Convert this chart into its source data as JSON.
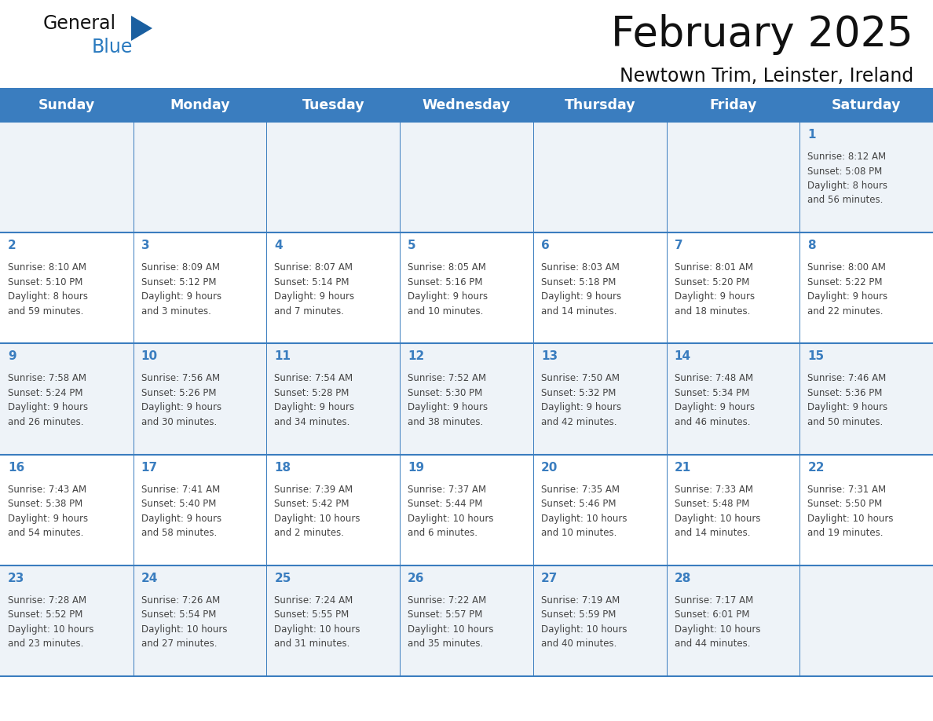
{
  "title": "February 2025",
  "subtitle": "Newtown Trim, Leinster, Ireland",
  "days_of_week": [
    "Sunday",
    "Monday",
    "Tuesday",
    "Wednesday",
    "Thursday",
    "Friday",
    "Saturday"
  ],
  "header_bg_color": "#3a7dbf",
  "header_text_color": "#ffffff",
  "grid_line_color": "#3a7dbf",
  "day_number_color": "#3a7dbf",
  "cell_text_color": "#444444",
  "title_color": "#111111",
  "subtitle_color": "#111111",
  "logo_black_color": "#111111",
  "logo_blue_color": "#2a7abf",
  "logo_triangle_color": "#1a5fa0",
  "row_bg_colors": [
    "#eef3f8",
    "#ffffff",
    "#eef3f8",
    "#ffffff",
    "#eef3f8"
  ],
  "calendar_data": [
    [
      null,
      null,
      null,
      null,
      null,
      null,
      {
        "day": 1,
        "sunrise": "8:12 AM",
        "sunset": "5:08 PM",
        "daylight": "8 hours and 56 minutes."
      }
    ],
    [
      {
        "day": 2,
        "sunrise": "8:10 AM",
        "sunset": "5:10 PM",
        "daylight": "8 hours and 59 minutes."
      },
      {
        "day": 3,
        "sunrise": "8:09 AM",
        "sunset": "5:12 PM",
        "daylight": "9 hours and 3 minutes."
      },
      {
        "day": 4,
        "sunrise": "8:07 AM",
        "sunset": "5:14 PM",
        "daylight": "9 hours and 7 minutes."
      },
      {
        "day": 5,
        "sunrise": "8:05 AM",
        "sunset": "5:16 PM",
        "daylight": "9 hours and 10 minutes."
      },
      {
        "day": 6,
        "sunrise": "8:03 AM",
        "sunset": "5:18 PM",
        "daylight": "9 hours and 14 minutes."
      },
      {
        "day": 7,
        "sunrise": "8:01 AM",
        "sunset": "5:20 PM",
        "daylight": "9 hours and 18 minutes."
      },
      {
        "day": 8,
        "sunrise": "8:00 AM",
        "sunset": "5:22 PM",
        "daylight": "9 hours and 22 minutes."
      }
    ],
    [
      {
        "day": 9,
        "sunrise": "7:58 AM",
        "sunset": "5:24 PM",
        "daylight": "9 hours and 26 minutes."
      },
      {
        "day": 10,
        "sunrise": "7:56 AM",
        "sunset": "5:26 PM",
        "daylight": "9 hours and 30 minutes."
      },
      {
        "day": 11,
        "sunrise": "7:54 AM",
        "sunset": "5:28 PM",
        "daylight": "9 hours and 34 minutes."
      },
      {
        "day": 12,
        "sunrise": "7:52 AM",
        "sunset": "5:30 PM",
        "daylight": "9 hours and 38 minutes."
      },
      {
        "day": 13,
        "sunrise": "7:50 AM",
        "sunset": "5:32 PM",
        "daylight": "9 hours and 42 minutes."
      },
      {
        "day": 14,
        "sunrise": "7:48 AM",
        "sunset": "5:34 PM",
        "daylight": "9 hours and 46 minutes."
      },
      {
        "day": 15,
        "sunrise": "7:46 AM",
        "sunset": "5:36 PM",
        "daylight": "9 hours and 50 minutes."
      }
    ],
    [
      {
        "day": 16,
        "sunrise": "7:43 AM",
        "sunset": "5:38 PM",
        "daylight": "9 hours and 54 minutes."
      },
      {
        "day": 17,
        "sunrise": "7:41 AM",
        "sunset": "5:40 PM",
        "daylight": "9 hours and 58 minutes."
      },
      {
        "day": 18,
        "sunrise": "7:39 AM",
        "sunset": "5:42 PM",
        "daylight": "10 hours and 2 minutes."
      },
      {
        "day": 19,
        "sunrise": "7:37 AM",
        "sunset": "5:44 PM",
        "daylight": "10 hours and 6 minutes."
      },
      {
        "day": 20,
        "sunrise": "7:35 AM",
        "sunset": "5:46 PM",
        "daylight": "10 hours and 10 minutes."
      },
      {
        "day": 21,
        "sunrise": "7:33 AM",
        "sunset": "5:48 PM",
        "daylight": "10 hours and 14 minutes."
      },
      {
        "day": 22,
        "sunrise": "7:31 AM",
        "sunset": "5:50 PM",
        "daylight": "10 hours and 19 minutes."
      }
    ],
    [
      {
        "day": 23,
        "sunrise": "7:28 AM",
        "sunset": "5:52 PM",
        "daylight": "10 hours and 23 minutes."
      },
      {
        "day": 24,
        "sunrise": "7:26 AM",
        "sunset": "5:54 PM",
        "daylight": "10 hours and 27 minutes."
      },
      {
        "day": 25,
        "sunrise": "7:24 AM",
        "sunset": "5:55 PM",
        "daylight": "10 hours and 31 minutes."
      },
      {
        "day": 26,
        "sunrise": "7:22 AM",
        "sunset": "5:57 PM",
        "daylight": "10 hours and 35 minutes."
      },
      {
        "day": 27,
        "sunrise": "7:19 AM",
        "sunset": "5:59 PM",
        "daylight": "10 hours and 40 minutes."
      },
      {
        "day": 28,
        "sunrise": "7:17 AM",
        "sunset": "6:01 PM",
        "daylight": "10 hours and 44 minutes."
      },
      null
    ]
  ]
}
